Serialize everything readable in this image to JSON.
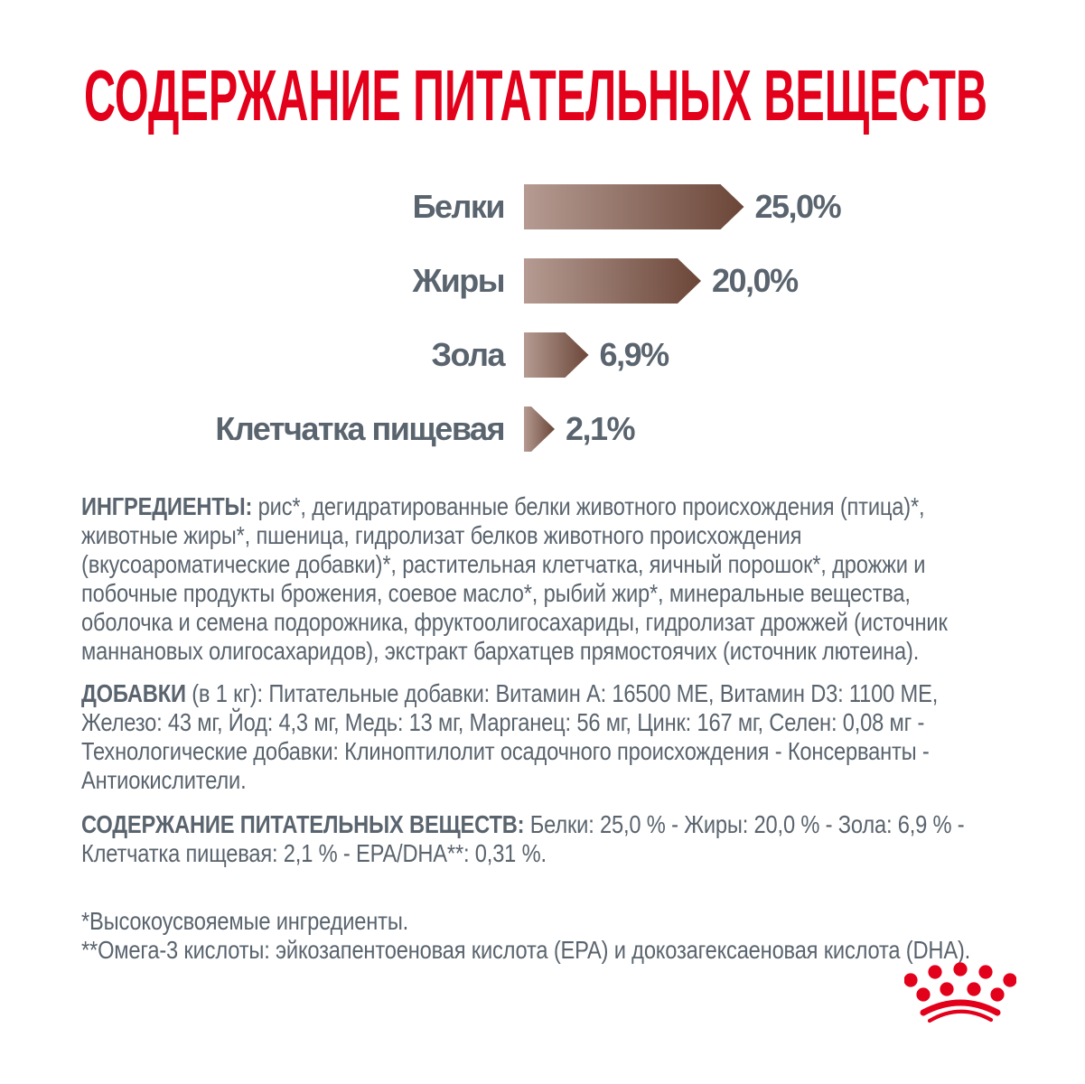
{
  "title": "СОДЕРЖАНИЕ ПИТАТЕЛЬНЫХ ВЕЩЕСТВ",
  "colors": {
    "brand_red": "#e3001b",
    "text_slate": "#5a646e",
    "bar_gradient_left": "#b59b92",
    "bar_gradient_right": "#6b4638"
  },
  "chart_data": {
    "type": "bar",
    "orientation": "horizontal",
    "categories": [
      "Белки",
      "Жиры",
      "Зола",
      "Клетчатка пищевая"
    ],
    "values": [
      25.0,
      20.0,
      6.9,
      2.1
    ],
    "value_labels": [
      "25,0%",
      "20,0%",
      "6,9%",
      "2,1%"
    ],
    "unit": "%",
    "xlim": [
      0,
      25
    ],
    "bar_style": "arrow-gradient-brown",
    "legend": "none",
    "grid": false
  },
  "sections": {
    "ingredients": {
      "heading": "ИНГРЕДИЕНТЫ:",
      "body": "рис*, дегидратированные белки животного происхождения (птица)*, животные жиры*, пшеница, гидролизат белков животного происхождения (вкусоароматические добавки)*, растительная клетчатка, яичный порошок*, дрожжи и побочные продукты брожения, соевое масло*, рыбий жир*, минеральные вещества, оболочка и семена подорожника, фруктоолигосахариды, гидролизат дрожжей (источник маннановых олигосахаридов), экстракт бархатцев прямостоячих (источник лютеина)."
    },
    "additives": {
      "heading": "ДОБАВКИ",
      "unit_note": "(в 1 кг):",
      "body": "Питательные добавки: Витамин A: 16500 МЕ, Витамин D3: 1100 МЕ, Железо: 43 мг, Йод: 4,3 мг, Медь: 13 мг, Марганец: 56 мг, Цинк: 167 мг, Селен: 0,08 мг - Технологические добавки: Клиноптилолит осадочного происхождения - Консерванты - Антиокислители."
    },
    "analysis": {
      "heading": "СОДЕРЖАНИЕ ПИТАТЕЛЬНЫХ ВЕЩЕСТВ:",
      "body": "Белки: 25,0 % - Жиры: 20,0 % - Зола: 6,9 % - Клетчатка пищевая: 2,1 % - EPA/DHA**: 0,31 %."
    },
    "footnotes": [
      "*Высокоусвояемые ингредиенты.",
      "**Омега-3 кислоты: эйкозапентоеновая кислота (EPA) и докозагексаеновая кислота (DHA)."
    ]
  },
  "logo": {
    "name": "royal-canin-crown",
    "color": "#e3001b"
  }
}
